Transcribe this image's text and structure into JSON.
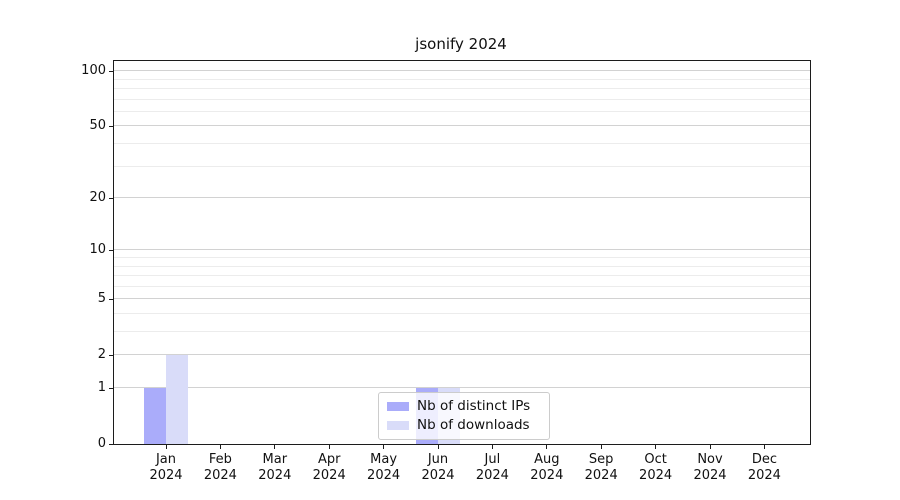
{
  "chart_data": {
    "type": "bar",
    "title": "jsonify 2024",
    "categories": [
      "Jan 2024",
      "Feb 2024",
      "Mar 2024",
      "Apr 2024",
      "May 2024",
      "Jun 2024",
      "Jul 2024",
      "Aug 2024",
      "Sep 2024",
      "Oct 2024",
      "Nov 2024",
      "Dec 2024"
    ],
    "series": [
      {
        "name": "Nb of distinct IPs",
        "color": "#aaacfa",
        "values": [
          1,
          0,
          0,
          0,
          0,
          1,
          0,
          0,
          0,
          0,
          0,
          0
        ]
      },
      {
        "name": "Nb of downloads",
        "color": "#d9dcf9",
        "values": [
          2,
          0,
          0,
          0,
          0,
          1,
          0,
          0,
          0,
          0,
          0,
          0
        ]
      }
    ],
    "xlabel": "",
    "ylabel": "",
    "yscale": "log1p",
    "ylim": [
      0,
      115
    ],
    "yticks": [
      0,
      1,
      2,
      5,
      10,
      20,
      50,
      100
    ],
    "minor_gridlines": [
      1,
      2,
      3,
      4,
      5,
      6,
      7,
      8,
      9,
      10,
      20,
      30,
      40,
      50,
      60,
      70,
      80,
      90,
      100
    ],
    "grid": true,
    "legend_position": "lower center, overlapping Jun bars",
    "legend_frame_color": "#cccccc",
    "axis_color": "#1c1c1c"
  }
}
